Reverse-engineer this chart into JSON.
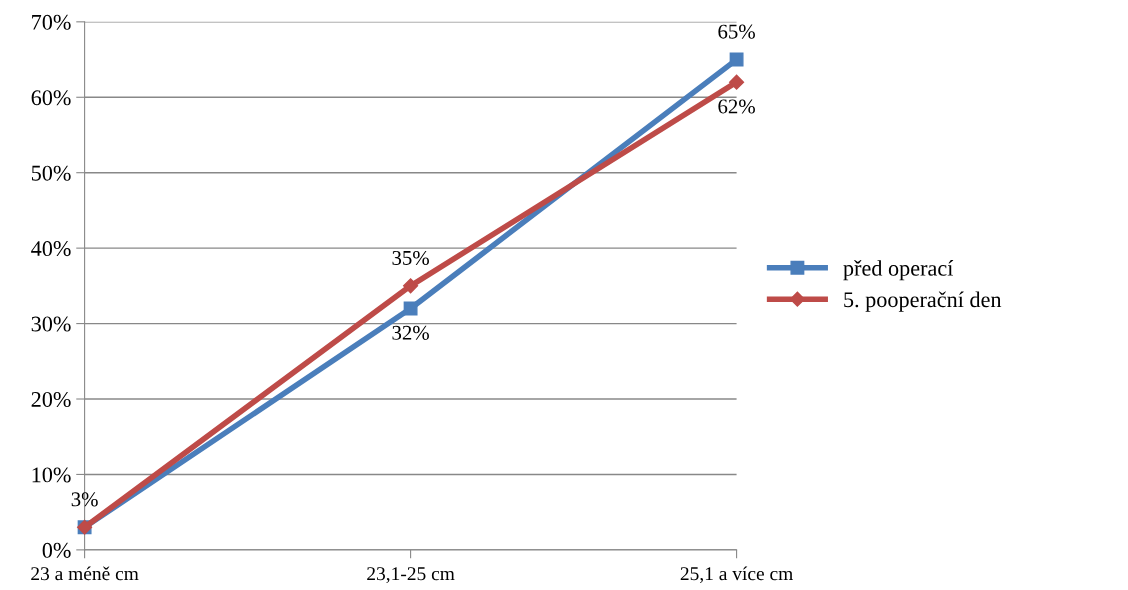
{
  "chart_data": {
    "type": "line",
    "categories": [
      "23 a méně cm",
      "23,1-25 cm",
      "25,1 a více cm"
    ],
    "series": [
      {
        "name": "před operací",
        "color": "#4a7ebb",
        "marker": "square",
        "values": [
          3,
          32,
          65
        ],
        "value_labels": [
          "3%",
          "32%",
          "65%"
        ]
      },
      {
        "name": "5. pooperační den",
        "color": "#be4b48",
        "marker": "diamond",
        "values": [
          3,
          35,
          62
        ],
        "value_labels": [
          null,
          "35%",
          "62%"
        ]
      }
    ],
    "ylim": [
      0,
      70
    ],
    "yticks": [
      {
        "value": 0,
        "label": "0%"
      },
      {
        "value": 10,
        "label": "10%"
      },
      {
        "value": 20,
        "label": "20%"
      },
      {
        "value": 30,
        "label": "30%"
      },
      {
        "value": 40,
        "label": "40%"
      },
      {
        "value": 50,
        "label": "50%"
      },
      {
        "value": 60,
        "label": "60%"
      },
      {
        "value": 70,
        "label": "70%"
      }
    ],
    "grid": "y",
    "legend": "right",
    "line_style": "solid"
  }
}
